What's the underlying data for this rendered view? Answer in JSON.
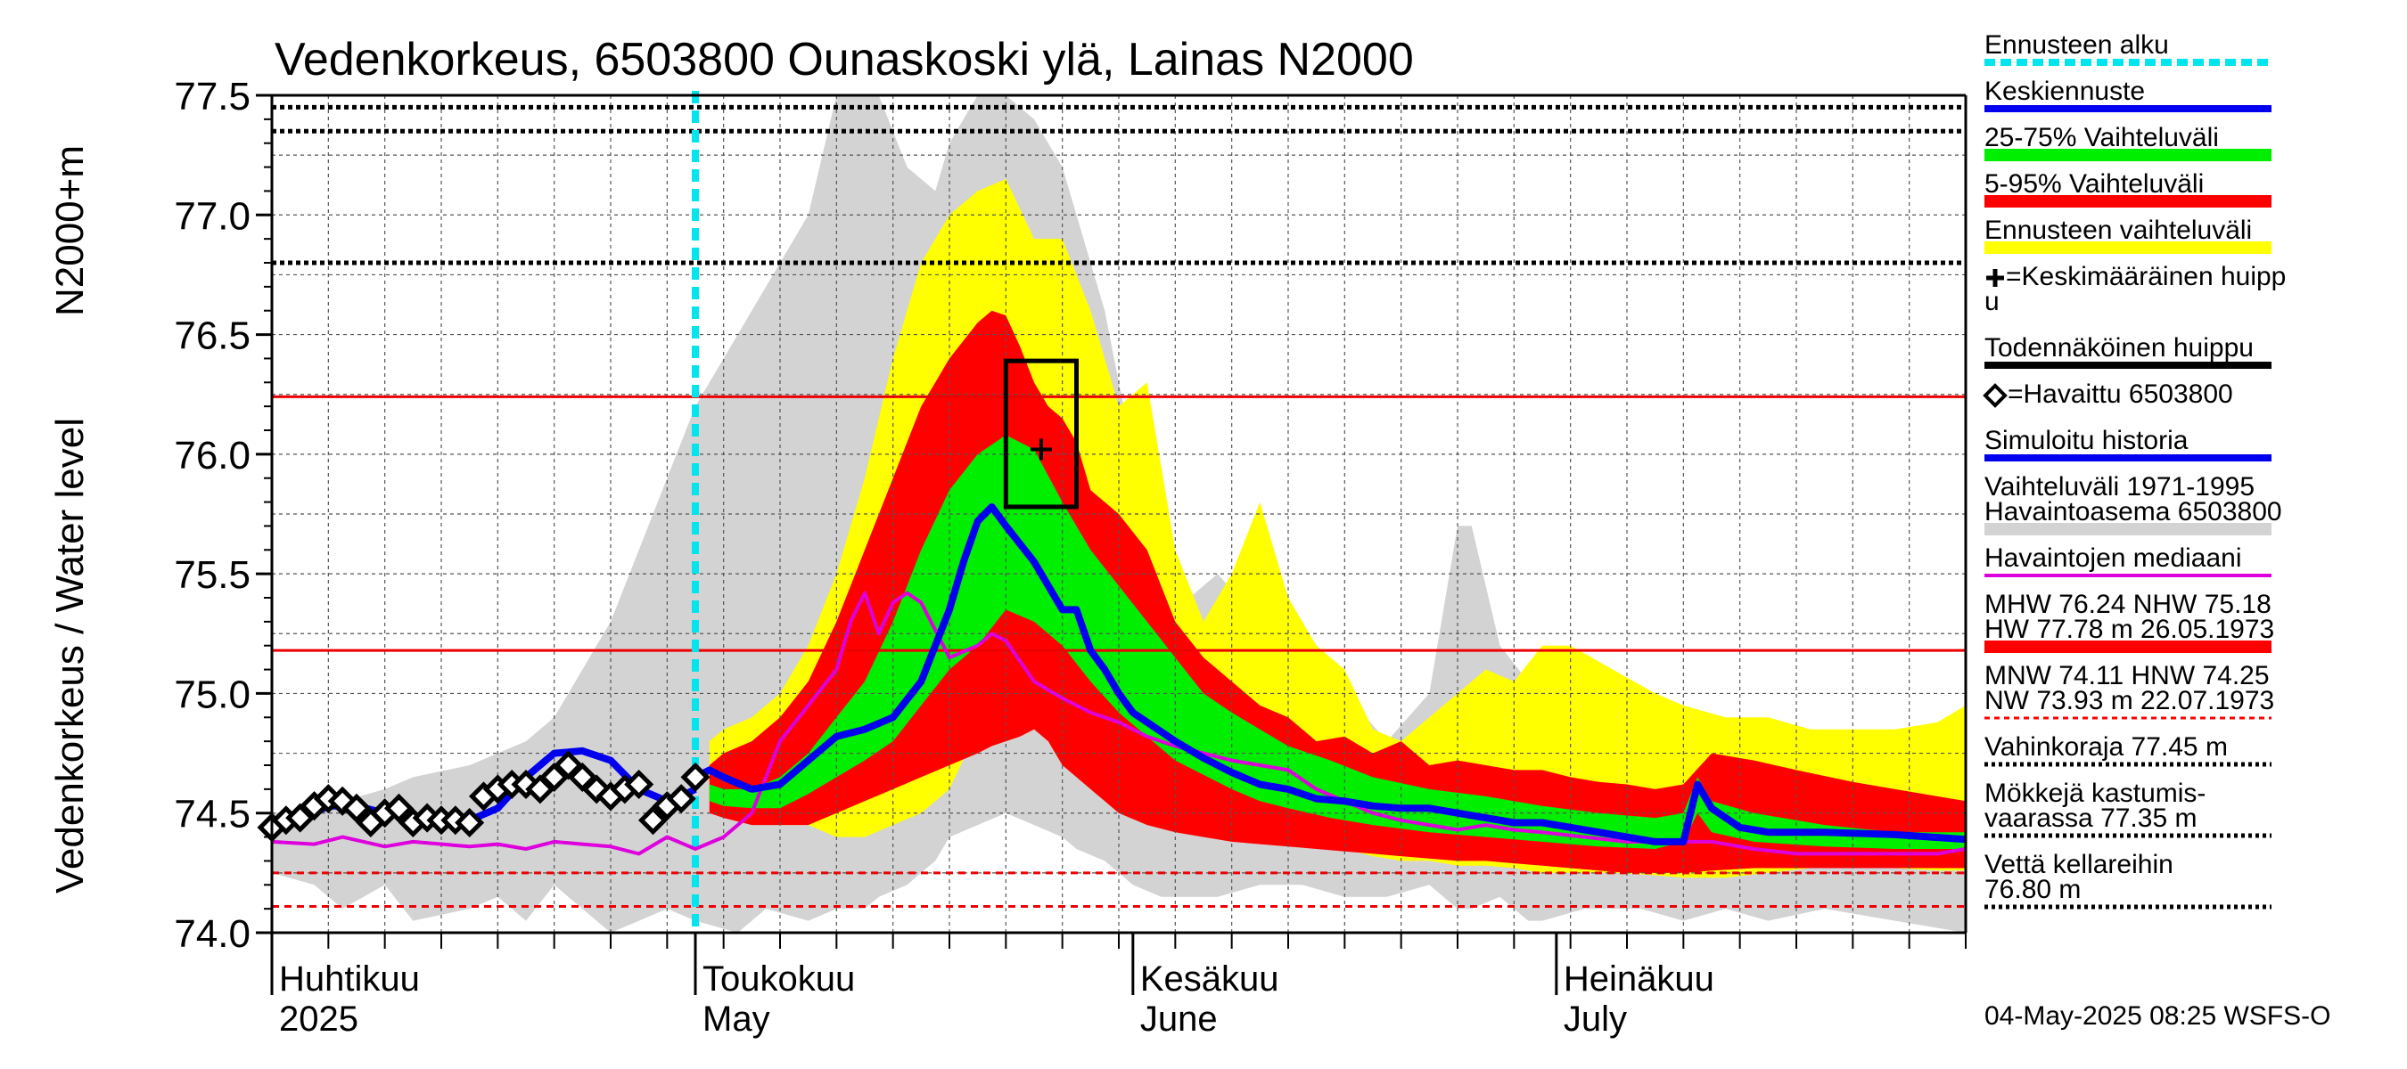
{
  "chart_data": {
    "type": "area",
    "title": "Vedenkorkeus, 6503800 Ounaskoski ylä, Lainas N2000",
    "ylabel_main": "Vedenkorkeus / Water level",
    "ylabel_unit": "N2000+m",
    "ylim": [
      74.0,
      77.5
    ],
    "xlim_day": [
      0,
      120
    ],
    "yticks": [
      "74.0",
      "74.5",
      "75.0",
      "75.5",
      "76.0",
      "76.5",
      "77.0",
      "77.5"
    ],
    "x_months": [
      {
        "day": 0,
        "fi": "Huhtikuu",
        "en": "2025"
      },
      {
        "day": 30,
        "fi": "Toukokuu",
        "en": "May"
      },
      {
        "day": 61,
        "fi": "Kesäkuu",
        "en": "June"
      },
      {
        "day": 91,
        "fi": "Heinäkuu",
        "en": "July"
      }
    ],
    "forecast_start_day": 30,
    "reference_lines": {
      "red_solid": [
        76.24,
        75.18
      ],
      "red_dashed": [
        74.25,
        74.11
      ],
      "black_dotted": [
        77.45,
        77.35,
        76.8
      ]
    },
    "peak_box": {
      "x0": 52,
      "x1": 57,
      "y0": 75.78,
      "y1": 76.39
    },
    "mean_peak": {
      "day": 54.5,
      "value": 76.02
    },
    "series": [
      {
        "name": "Vaihteluväli 1971-1995",
        "color": "#d3d3d3",
        "kind": "band",
        "x": [
          0,
          3,
          5,
          8,
          10,
          14,
          16,
          18,
          20,
          24,
          26,
          28,
          30,
          33,
          35,
          38,
          40,
          42,
          43,
          45,
          47,
          48,
          50,
          52,
          54,
          56,
          57,
          59,
          61,
          63,
          65,
          67,
          70,
          73,
          76,
          79,
          82,
          84,
          85,
          87,
          89,
          90,
          93,
          97,
          100,
          103,
          106,
          110,
          115,
          120
        ],
        "upper": [
          74.5,
          74.52,
          74.55,
          74.6,
          74.65,
          74.7,
          74.75,
          74.8,
          74.9,
          75.3,
          75.6,
          75.9,
          76.2,
          76.5,
          76.7,
          77.0,
          77.5,
          77.5,
          77.5,
          77.2,
          77.1,
          77.3,
          77.5,
          77.5,
          77.4,
          77.2,
          77.0,
          76.6,
          76.0,
          75.7,
          75.4,
          75.5,
          75.3,
          75.1,
          75.0,
          74.8,
          75.0,
          75.7,
          75.7,
          75.2,
          75.05,
          75.0,
          74.9,
          74.85,
          74.8,
          74.78,
          74.76,
          74.7,
          74.75,
          74.8
        ],
        "lower": [
          74.25,
          74.2,
          74.1,
          74.2,
          74.05,
          74.1,
          74.15,
          74.05,
          74.2,
          74.0,
          74.05,
          74.1,
          74.05,
          74.0,
          74.1,
          74.05,
          74.1,
          74.1,
          74.15,
          74.2,
          74.3,
          74.4,
          74.45,
          74.5,
          74.45,
          74.4,
          74.35,
          74.3,
          74.2,
          74.15,
          74.15,
          74.15,
          74.2,
          74.2,
          74.15,
          74.15,
          74.2,
          74.1,
          74.1,
          74.15,
          74.05,
          74.05,
          74.1,
          74.1,
          74.05,
          74.1,
          74.05,
          74.1,
          74.05,
          74.0
        ]
      },
      {
        "name": "Ennusteen vaihteluväli",
        "color": "#ffff00",
        "kind": "band",
        "x": [
          31,
          32,
          34,
          36,
          38,
          40,
          42,
          44,
          46,
          48,
          50,
          52,
          54,
          56,
          58,
          60,
          62,
          64,
          66,
          68,
          70,
          72,
          74,
          76,
          78,
          80,
          82,
          84,
          86,
          88,
          90,
          92,
          95,
          98,
          100,
          103,
          106,
          109,
          112,
          115,
          118,
          120
        ],
        "upper": [
          74.8,
          74.85,
          74.9,
          75.0,
          75.2,
          75.5,
          75.9,
          76.4,
          76.8,
          77.0,
          77.1,
          77.15,
          76.9,
          76.9,
          76.6,
          76.2,
          76.3,
          75.6,
          75.3,
          75.5,
          75.8,
          75.4,
          75.2,
          75.1,
          74.85,
          74.8,
          74.9,
          75.0,
          75.1,
          75.05,
          75.2,
          75.2,
          75.1,
          75.0,
          74.95,
          74.9,
          74.9,
          74.85,
          74.85,
          74.85,
          74.88,
          74.95
        ],
        "lower": [
          74.55,
          74.52,
          74.5,
          74.45,
          74.45,
          74.4,
          74.4,
          74.45,
          74.5,
          74.6,
          74.85,
          74.95,
          74.95,
          74.9,
          74.75,
          74.6,
          74.55,
          74.5,
          74.45,
          74.42,
          74.4,
          74.4,
          74.38,
          74.35,
          74.32,
          74.3,
          74.3,
          74.28,
          74.28,
          74.27,
          74.25,
          74.25,
          74.25,
          74.24,
          74.23,
          74.23,
          74.25,
          74.27,
          74.27,
          74.27,
          74.26,
          74.26
        ]
      },
      {
        "name": "5-95% Vaihteluväli",
        "color": "#ff0000",
        "kind": "band",
        "x": [
          31,
          32,
          34,
          36,
          38,
          40,
          42,
          44,
          46,
          48,
          50,
          51,
          52,
          53,
          54,
          55,
          56,
          57,
          58,
          59,
          60,
          62,
          64,
          66,
          68,
          70,
          72,
          74,
          76,
          78,
          80,
          82,
          84,
          86,
          88,
          90,
          92,
          94,
          96,
          98,
          100,
          102,
          105,
          108,
          112,
          115,
          118,
          120
        ],
        "upper": [
          74.7,
          74.75,
          74.8,
          74.9,
          75.05,
          75.3,
          75.6,
          75.9,
          76.2,
          76.4,
          76.55,
          76.6,
          76.58,
          76.45,
          76.3,
          76.2,
          76.15,
          76.05,
          75.85,
          75.8,
          75.75,
          75.6,
          75.3,
          75.15,
          75.05,
          74.95,
          74.9,
          74.8,
          74.82,
          74.75,
          74.8,
          74.7,
          74.72,
          74.7,
          74.68,
          74.68,
          74.65,
          74.63,
          74.62,
          74.6,
          74.62,
          74.75,
          74.72,
          74.68,
          74.63,
          74.6,
          74.57,
          74.55
        ],
        "lower": [
          74.5,
          74.48,
          74.45,
          74.45,
          74.45,
          74.5,
          74.55,
          74.6,
          74.65,
          74.7,
          74.75,
          74.78,
          74.8,
          74.82,
          74.85,
          74.8,
          74.7,
          74.65,
          74.6,
          74.55,
          74.5,
          74.45,
          74.42,
          74.4,
          74.38,
          74.37,
          74.36,
          74.35,
          74.34,
          74.33,
          74.32,
          74.31,
          74.3,
          74.3,
          74.29,
          74.28,
          74.27,
          74.26,
          74.25,
          74.25,
          74.25,
          74.26,
          74.27,
          74.27,
          74.27,
          74.27,
          74.27,
          74.27
        ]
      },
      {
        "name": "25-75% Vaihteluväli",
        "color": "#00ee00",
        "kind": "band",
        "x": [
          31,
          32,
          34,
          36,
          38,
          40,
          42,
          44,
          46,
          48,
          50,
          52,
          54,
          56,
          58,
          60,
          62,
          64,
          66,
          68,
          70,
          72,
          75,
          78,
          82,
          86,
          90,
          94,
          98,
          100,
          101,
          102,
          105,
          110,
          115,
          120
        ],
        "upper": [
          74.62,
          74.6,
          74.6,
          74.65,
          74.75,
          74.9,
          75.05,
          75.3,
          75.6,
          75.85,
          76.0,
          76.08,
          76.02,
          75.8,
          75.6,
          75.45,
          75.3,
          75.15,
          75.0,
          74.92,
          74.85,
          74.78,
          74.72,
          74.65,
          74.6,
          74.57,
          74.53,
          74.5,
          74.48,
          74.5,
          74.65,
          74.55,
          74.5,
          74.45,
          74.42,
          74.42
        ],
        "lower": [
          74.55,
          74.53,
          74.52,
          74.52,
          74.58,
          74.65,
          74.72,
          74.8,
          74.95,
          75.1,
          75.2,
          75.35,
          75.3,
          75.2,
          75.05,
          74.92,
          74.82,
          74.72,
          74.66,
          74.6,
          74.55,
          74.52,
          74.48,
          74.45,
          74.42,
          74.4,
          74.38,
          74.36,
          74.35,
          74.38,
          74.5,
          74.42,
          74.38,
          74.36,
          74.35,
          74.35
        ]
      },
      {
        "name": "Havaintojen mediaani",
        "color": "#dd00dd",
        "kind": "line",
        "x": [
          0,
          3,
          5,
          8,
          10,
          14,
          16,
          18,
          20,
          22,
          24,
          26,
          28,
          30,
          32,
          34,
          36,
          38,
          40,
          41,
          42,
          43,
          44,
          45,
          46,
          48,
          50,
          51,
          52,
          54,
          56,
          58,
          60,
          62,
          64,
          66,
          68,
          70,
          72,
          74,
          76,
          78,
          80,
          82,
          84,
          86,
          88,
          90,
          93,
          96,
          100,
          102,
          105,
          108,
          112,
          115,
          118,
          120
        ],
        "y": [
          74.38,
          74.37,
          74.4,
          74.36,
          74.38,
          74.36,
          74.37,
          74.35,
          74.38,
          74.37,
          74.36,
          74.33,
          74.4,
          74.35,
          74.4,
          74.5,
          74.8,
          74.95,
          75.1,
          75.3,
          75.42,
          75.25,
          75.38,
          75.42,
          75.38,
          75.15,
          75.2,
          75.25,
          75.22,
          75.05,
          74.98,
          74.92,
          74.88,
          74.82,
          74.78,
          74.75,
          74.72,
          74.7,
          74.68,
          74.6,
          74.55,
          74.5,
          74.47,
          74.45,
          74.43,
          74.45,
          74.43,
          74.42,
          74.4,
          74.38,
          74.38,
          74.38,
          74.35,
          74.33,
          74.33,
          74.33,
          74.33,
          74.35
        ]
      },
      {
        "name": "Keskiennuste",
        "color": "#0000ee",
        "kind": "line",
        "x": [
          30,
          31,
          32,
          34,
          36,
          38,
          40,
          42,
          44,
          46,
          48,
          49,
          50,
          51,
          52,
          54,
          56,
          57,
          58,
          59,
          60,
          61,
          62,
          64,
          66,
          68,
          70,
          72,
          74,
          76,
          78,
          80,
          82,
          84,
          86,
          88,
          90,
          92,
          94,
          96,
          98,
          99,
          100,
          101,
          102,
          104,
          106,
          110,
          115,
          120
        ],
        "y": [
          74.65,
          74.68,
          74.65,
          74.6,
          74.62,
          74.72,
          74.82,
          74.85,
          74.9,
          75.05,
          75.35,
          75.55,
          75.72,
          75.78,
          75.7,
          75.55,
          75.35,
          75.35,
          75.18,
          75.1,
          75.0,
          74.92,
          74.88,
          74.8,
          74.73,
          74.67,
          74.62,
          74.6,
          74.56,
          74.55,
          74.53,
          74.52,
          74.52,
          74.5,
          74.48,
          74.46,
          74.46,
          74.44,
          74.42,
          74.4,
          74.38,
          74.38,
          74.38,
          74.62,
          74.52,
          74.44,
          74.42,
          74.42,
          74.41,
          74.39
        ]
      },
      {
        "name": "Simuloitu historia",
        "color": "#0000ee",
        "kind": "line",
        "x": [
          0,
          2,
          4,
          6,
          8,
          10,
          12,
          14,
          16,
          18,
          20,
          22,
          24,
          26,
          28,
          29,
          30
        ],
        "y": [
          74.44,
          74.47,
          74.53,
          74.53,
          74.5,
          74.48,
          74.48,
          74.47,
          74.52,
          74.65,
          74.75,
          74.76,
          74.72,
          74.6,
          74.55,
          74.57,
          74.6
        ]
      },
      {
        "name": "Havaittu 6503800",
        "color": "#000000",
        "kind": "markers",
        "x": [
          0,
          1,
          2,
          3,
          4,
          5,
          6,
          7,
          8,
          9,
          10,
          11,
          12,
          13,
          14,
          15,
          16,
          17,
          18,
          19,
          20,
          21,
          22,
          23,
          24,
          25,
          26,
          27,
          28,
          29,
          30
        ],
        "y": [
          74.44,
          74.47,
          74.48,
          74.53,
          74.56,
          74.55,
          74.52,
          74.46,
          74.5,
          74.52,
          74.46,
          74.48,
          74.47,
          74.47,
          74.46,
          74.57,
          74.6,
          74.62,
          74.62,
          74.6,
          74.65,
          74.7,
          74.65,
          74.6,
          74.57,
          74.6,
          74.62,
          74.47,
          74.53,
          74.56,
          74.65
        ]
      }
    ]
  },
  "legend": [
    {
      "id": "forecast-start",
      "label": "Ennusteen alku",
      "style": "cyan-dashed"
    },
    {
      "id": "mean-forecast",
      "label": "Keskiennuste",
      "style": "blue"
    },
    {
      "id": "range-25-75",
      "label": "25-75% Vaihteluväli",
      "style": "green"
    },
    {
      "id": "range-5-95",
      "label": "5-95% Vaihteluväli",
      "style": "red"
    },
    {
      "id": "forecast-range",
      "label": "Ennusteen vaihteluväli",
      "style": "yellow"
    },
    {
      "id": "mean-peak",
      "label": "=Keskimääräinen huipp",
      "label2": "u",
      "style": "none",
      "marker": "plus"
    },
    {
      "id": "likely-peak",
      "label": "Todennäköinen huippu",
      "style": "black"
    },
    {
      "id": "observed",
      "label": "=Havaittu 6503800",
      "style": "none",
      "marker": "diamond"
    },
    {
      "id": "sim-history",
      "label": "Simuloitu historia",
      "style": "blue"
    },
    {
      "id": "variation",
      "label": "Vaihteluväli 1971-1995",
      "label2": " Havaintoasema 6503800",
      "style": "gray"
    },
    {
      "id": "obs-median",
      "label": "Havaintojen mediaani",
      "style": "magenta"
    },
    {
      "id": "mhw",
      "label": "MHW  76.24 NHW  75.18",
      "label2": "HW  77.78 m 26.05.1973",
      "style": "red"
    },
    {
      "id": "mnw",
      "label": "MNW  74.11 HNW  74.25",
      "label2": "NW  73.93 m 22.07.1973",
      "style": "red-dashed"
    },
    {
      "id": "damage",
      "label": "Vahinkoraja 77.45 m",
      "style": "black-dotted"
    },
    {
      "id": "cottages",
      "label": "Mökkejä kastumis-",
      "label2": "  vaarassa 77.35 m",
      "style": "black-dotted"
    },
    {
      "id": "cellars",
      "label": "Vettä kellareihin",
      "label2": " 76.80 m",
      "style": "black-dotted"
    }
  ],
  "footer": "04-May-2025 08:25 WSFS-O",
  "colors": {
    "cyan": "#00e5ee",
    "blue": "#0000ee",
    "green": "#00ee00",
    "red": "#ff0000",
    "yellow": "#ffff00",
    "gray": "#d3d3d3",
    "magenta": "#dd00dd",
    "black": "#000000"
  }
}
